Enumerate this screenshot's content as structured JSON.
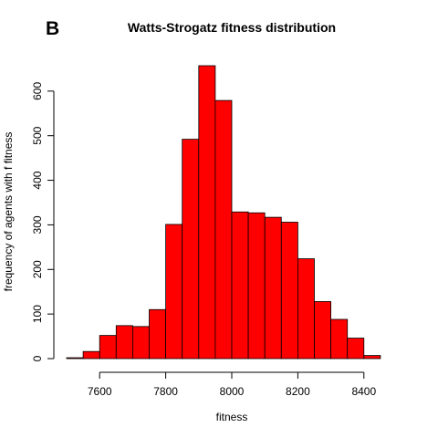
{
  "panel_label": "B",
  "chart_data": {
    "type": "bar",
    "subtype": "histogram",
    "title": "Watts-Strogatz fitness distribution",
    "xlabel": "fitness",
    "ylabel": "frequency of agents with f fitness",
    "bin_width": 50,
    "bin_starts": [
      7500,
      7550,
      7600,
      7650,
      7700,
      7750,
      7800,
      7850,
      7900,
      7950,
      8000,
      8050,
      8100,
      8150,
      8200,
      8250,
      8300,
      8350,
      8400
    ],
    "values": [
      2,
      16,
      52,
      74,
      72,
      110,
      301,
      492,
      657,
      579,
      329,
      327,
      317,
      306,
      224,
      128,
      88,
      46,
      7
    ],
    "bar_color": "#ff0000",
    "xlim": [
      7500,
      8500
    ],
    "ylim": [
      0,
      657
    ],
    "x_ticks": [
      7600,
      7800,
      8000,
      8200,
      8400
    ],
    "y_ticks": [
      0,
      100,
      200,
      300,
      400,
      500,
      600
    ],
    "grid": false,
    "legend": "none"
  }
}
